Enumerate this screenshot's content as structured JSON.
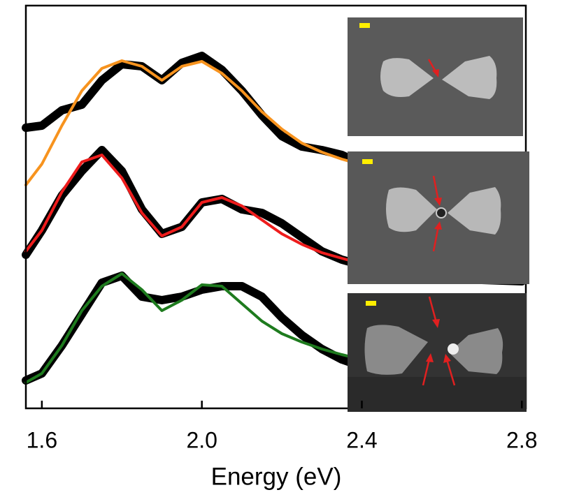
{
  "chart_data": {
    "type": "line",
    "xlabel": "Energy (eV)",
    "xlim": [
      1.56,
      2.81
    ],
    "xticks": [
      1.6,
      {
        "value": 2,
        "label": "2.0"
      },
      2.4,
      2.8
    ],
    "ylim": [
      0,
      577
    ],
    "x": [
      1.56,
      1.6,
      1.65,
      1.7,
      1.75,
      1.8,
      1.85,
      1.9,
      1.95,
      2.0,
      2.05,
      2.1,
      2.15,
      2.2,
      2.25,
      2.3,
      2.35,
      2.4,
      2.45,
      2.5,
      2.55,
      2.6,
      2.65,
      2.7,
      2.75,
      2.8
    ],
    "series": [
      {
        "color": "#000000",
        "width": 12,
        "values": [
          402,
          405,
          427,
          435,
          470,
          493,
          490,
          470,
          495,
          505,
          485,
          455,
          420,
          390,
          375,
          370,
          363,
          350,
          340,
          335,
          330,
          327,
          325,
          323,
          322,
          321
        ]
      },
      {
        "color": "#f7931e",
        "width": 4,
        "values": [
          320,
          350,
          405,
          455,
          487,
          498,
          490,
          470,
          490,
          497,
          480,
          455,
          425,
          400,
          380,
          367,
          357,
          349,
          342,
          337,
          333,
          330,
          327,
          325,
          323,
          322
        ]
      },
      {
        "color": "#000000",
        "width": 12,
        "values": [
          220,
          255,
          305,
          340,
          370,
          340,
          285,
          250,
          260,
          295,
          300,
          285,
          280,
          265,
          245,
          225,
          213,
          205,
          197,
          192,
          189,
          187,
          185,
          184,
          183,
          182
        ]
      },
      {
        "color": "#ee1c1c",
        "width": 4,
        "values": [
          225,
          255,
          310,
          353,
          363,
          330,
          280,
          247,
          260,
          295,
          302,
          290,
          270,
          250,
          235,
          223,
          215,
          207,
          200,
          195,
          191,
          188,
          186,
          185,
          184,
          183
        ]
      },
      {
        "color": "#000000",
        "width": 12,
        "values": [
          40,
          50,
          90,
          135,
          180,
          190,
          160,
          155,
          160,
          170,
          175,
          175,
          160,
          130,
          105,
          85,
          70,
          60,
          55,
          50,
          47,
          45,
          44,
          43,
          42,
          42
        ]
      },
      {
        "color": "#1e7b1e",
        "width": 4,
        "values": [
          37,
          50,
          90,
          140,
          175,
          193,
          170,
          140,
          155,
          177,
          175,
          150,
          125,
          107,
          95,
          85,
          77,
          70,
          65,
          61,
          58,
          56,
          54,
          53,
          52,
          51
        ]
      }
    ]
  }
}
